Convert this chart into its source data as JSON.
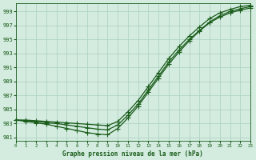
{
  "title": "Graphe pression niveau de la mer (hPa)",
  "hours": [
    0,
    1,
    2,
    3,
    4,
    5,
    6,
    7,
    8,
    9,
    10,
    11,
    12,
    13,
    14,
    15,
    16,
    17,
    18,
    19,
    20,
    21,
    22,
    23
  ],
  "series": [
    [
      983.5,
      983.3,
      983.1,
      982.9,
      982.6,
      982.3,
      982.0,
      981.7,
      981.5,
      981.4,
      982.3,
      983.8,
      985.5,
      987.5,
      989.5,
      991.5,
      993.2,
      994.8,
      996.2,
      997.4,
      998.2,
      998.8,
      999.2,
      999.5
    ],
    [
      983.5,
      983.4,
      983.3,
      983.1,
      983.0,
      982.8,
      982.6,
      982.4,
      982.2,
      982.1,
      982.8,
      984.2,
      985.8,
      987.8,
      989.8,
      991.8,
      993.5,
      995.0,
      996.3,
      997.5,
      998.4,
      999.0,
      999.4,
      999.7
    ],
    [
      983.5,
      983.5,
      983.4,
      983.3,
      983.2,
      983.1,
      983.0,
      982.9,
      982.8,
      982.7,
      983.3,
      984.7,
      986.3,
      988.3,
      990.3,
      992.3,
      994.0,
      995.5,
      996.8,
      998.0,
      998.8,
      999.3,
      999.7,
      999.9
    ]
  ],
  "line_color": "#1a5c1a",
  "marker": "+",
  "markersize": 4,
  "linewidth": 0.9,
  "bg_color": "#d4ece0",
  "grid_color": "#aacfbe",
  "text_color": "#1a5c1a",
  "ylim": [
    980.5,
    1000.2
  ],
  "yticks": [
    981,
    983,
    985,
    987,
    989,
    991,
    993,
    995,
    997,
    999
  ],
  "xlim": [
    0,
    23
  ],
  "xticks": [
    0,
    1,
    2,
    3,
    4,
    5,
    6,
    7,
    8,
    9,
    10,
    11,
    12,
    13,
    14,
    15,
    16,
    17,
    18,
    19,
    20,
    21,
    22,
    23
  ]
}
